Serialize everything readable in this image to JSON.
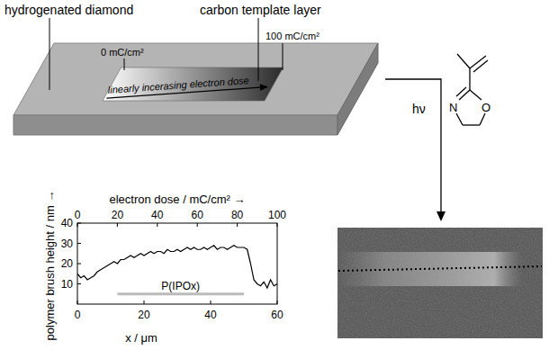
{
  "labels": {
    "substrate": "hydrogenated diamond",
    "template": "carbon template layer",
    "dose_start": "0 mC/cm²",
    "dose_end": "100 mC/cm²",
    "gradient": "linearly incerasing electron dose",
    "light": "hν"
  },
  "molecule": {
    "atoms": [
      "N",
      "O"
    ]
  },
  "chart_data": {
    "type": "line",
    "color": "#000000",
    "x_label": "x / μm",
    "x2_label": "electron dose / mC/cm² →",
    "y_label": "polymer brush height / nm →",
    "x": [
      0,
      1,
      2,
      3,
      4,
      5,
      6,
      7,
      8,
      9,
      10,
      11,
      12,
      13,
      14,
      15,
      16,
      17,
      18,
      19,
      20,
      21,
      22,
      23,
      24,
      25,
      26,
      27,
      28,
      29,
      30,
      31,
      32,
      33,
      34,
      35,
      36,
      37,
      38,
      39,
      40,
      41,
      42,
      43,
      44,
      45,
      46,
      47,
      48,
      49,
      50,
      51,
      52,
      53,
      54,
      55,
      56,
      57,
      58,
      59,
      60
    ],
    "values": [
      15,
      13,
      14,
      12,
      13,
      14,
      16,
      17,
      18,
      19,
      20,
      21,
      20,
      22,
      22,
      23,
      24,
      23,
      24,
      25,
      24,
      25,
      26,
      25,
      26,
      26,
      25,
      27,
      26,
      26,
      27,
      26,
      27,
      28,
      27,
      28,
      27,
      27,
      28,
      27,
      28,
      29,
      27,
      28,
      28,
      27,
      28,
      29,
      28,
      28,
      28,
      27,
      20,
      12,
      10,
      9,
      11,
      8,
      12,
      9,
      10
    ],
    "xlim": [
      0,
      60
    ],
    "xticks": [
      0,
      20,
      40,
      60
    ],
    "x2lim": [
      0,
      100
    ],
    "x2ticks": [
      0,
      20,
      40,
      60,
      80,
      100
    ],
    "ylim": [
      0,
      40
    ],
    "yticks": [
      10,
      20,
      30,
      40
    ],
    "annotation": {
      "text": "P(IPOx)",
      "x": [
        12,
        50
      ],
      "y": 5
    }
  }
}
